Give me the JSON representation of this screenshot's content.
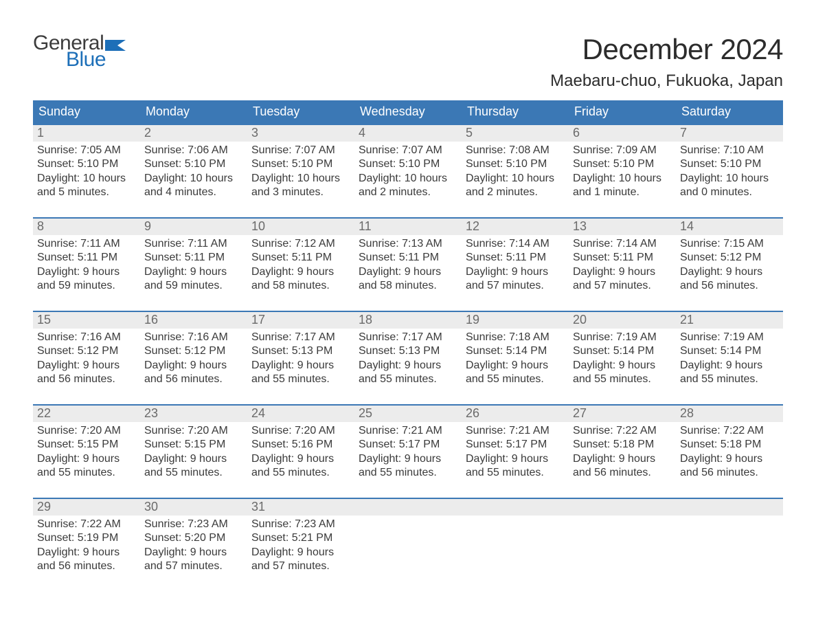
{
  "logo": {
    "line1": "General",
    "line2": "Blue",
    "flag_color": "#1d6fb8",
    "text_gray": "#3c3c3c"
  },
  "title": "December 2024",
  "location": "Maebaru-chuo, Fukuoka, Japan",
  "colors": {
    "header_bg": "#3b78b5",
    "header_text": "#ffffff",
    "week_border": "#3b78b5",
    "daynum_bg": "#ececec",
    "daynum_text": "#6a6a6a",
    "body_text": "#3a3a3a",
    "page_bg": "#ffffff"
  },
  "fonts": {
    "title_pt": 42,
    "location_pt": 24,
    "dow_pt": 18,
    "daynum_pt": 18,
    "body_pt": 16
  },
  "days_of_week": [
    "Sunday",
    "Monday",
    "Tuesday",
    "Wednesday",
    "Thursday",
    "Friday",
    "Saturday"
  ],
  "weeks": [
    [
      {
        "n": "1",
        "sunrise": "Sunrise: 7:05 AM",
        "sunset": "Sunset: 5:10 PM",
        "d1": "Daylight: 10 hours",
        "d2": "and 5 minutes."
      },
      {
        "n": "2",
        "sunrise": "Sunrise: 7:06 AM",
        "sunset": "Sunset: 5:10 PM",
        "d1": "Daylight: 10 hours",
        "d2": "and 4 minutes."
      },
      {
        "n": "3",
        "sunrise": "Sunrise: 7:07 AM",
        "sunset": "Sunset: 5:10 PM",
        "d1": "Daylight: 10 hours",
        "d2": "and 3 minutes."
      },
      {
        "n": "4",
        "sunrise": "Sunrise: 7:07 AM",
        "sunset": "Sunset: 5:10 PM",
        "d1": "Daylight: 10 hours",
        "d2": "and 2 minutes."
      },
      {
        "n": "5",
        "sunrise": "Sunrise: 7:08 AM",
        "sunset": "Sunset: 5:10 PM",
        "d1": "Daylight: 10 hours",
        "d2": "and 2 minutes."
      },
      {
        "n": "6",
        "sunrise": "Sunrise: 7:09 AM",
        "sunset": "Sunset: 5:10 PM",
        "d1": "Daylight: 10 hours",
        "d2": "and 1 minute."
      },
      {
        "n": "7",
        "sunrise": "Sunrise: 7:10 AM",
        "sunset": "Sunset: 5:10 PM",
        "d1": "Daylight: 10 hours",
        "d2": "and 0 minutes."
      }
    ],
    [
      {
        "n": "8",
        "sunrise": "Sunrise: 7:11 AM",
        "sunset": "Sunset: 5:11 PM",
        "d1": "Daylight: 9 hours",
        "d2": "and 59 minutes."
      },
      {
        "n": "9",
        "sunrise": "Sunrise: 7:11 AM",
        "sunset": "Sunset: 5:11 PM",
        "d1": "Daylight: 9 hours",
        "d2": "and 59 minutes."
      },
      {
        "n": "10",
        "sunrise": "Sunrise: 7:12 AM",
        "sunset": "Sunset: 5:11 PM",
        "d1": "Daylight: 9 hours",
        "d2": "and 58 minutes."
      },
      {
        "n": "11",
        "sunrise": "Sunrise: 7:13 AM",
        "sunset": "Sunset: 5:11 PM",
        "d1": "Daylight: 9 hours",
        "d2": "and 58 minutes."
      },
      {
        "n": "12",
        "sunrise": "Sunrise: 7:14 AM",
        "sunset": "Sunset: 5:11 PM",
        "d1": "Daylight: 9 hours",
        "d2": "and 57 minutes."
      },
      {
        "n": "13",
        "sunrise": "Sunrise: 7:14 AM",
        "sunset": "Sunset: 5:11 PM",
        "d1": "Daylight: 9 hours",
        "d2": "and 57 minutes."
      },
      {
        "n": "14",
        "sunrise": "Sunrise: 7:15 AM",
        "sunset": "Sunset: 5:12 PM",
        "d1": "Daylight: 9 hours",
        "d2": "and 56 minutes."
      }
    ],
    [
      {
        "n": "15",
        "sunrise": "Sunrise: 7:16 AM",
        "sunset": "Sunset: 5:12 PM",
        "d1": "Daylight: 9 hours",
        "d2": "and 56 minutes."
      },
      {
        "n": "16",
        "sunrise": "Sunrise: 7:16 AM",
        "sunset": "Sunset: 5:12 PM",
        "d1": "Daylight: 9 hours",
        "d2": "and 56 minutes."
      },
      {
        "n": "17",
        "sunrise": "Sunrise: 7:17 AM",
        "sunset": "Sunset: 5:13 PM",
        "d1": "Daylight: 9 hours",
        "d2": "and 55 minutes."
      },
      {
        "n": "18",
        "sunrise": "Sunrise: 7:17 AM",
        "sunset": "Sunset: 5:13 PM",
        "d1": "Daylight: 9 hours",
        "d2": "and 55 minutes."
      },
      {
        "n": "19",
        "sunrise": "Sunrise: 7:18 AM",
        "sunset": "Sunset: 5:14 PM",
        "d1": "Daylight: 9 hours",
        "d2": "and 55 minutes."
      },
      {
        "n": "20",
        "sunrise": "Sunrise: 7:19 AM",
        "sunset": "Sunset: 5:14 PM",
        "d1": "Daylight: 9 hours",
        "d2": "and 55 minutes."
      },
      {
        "n": "21",
        "sunrise": "Sunrise: 7:19 AM",
        "sunset": "Sunset: 5:14 PM",
        "d1": "Daylight: 9 hours",
        "d2": "and 55 minutes."
      }
    ],
    [
      {
        "n": "22",
        "sunrise": "Sunrise: 7:20 AM",
        "sunset": "Sunset: 5:15 PM",
        "d1": "Daylight: 9 hours",
        "d2": "and 55 minutes."
      },
      {
        "n": "23",
        "sunrise": "Sunrise: 7:20 AM",
        "sunset": "Sunset: 5:15 PM",
        "d1": "Daylight: 9 hours",
        "d2": "and 55 minutes."
      },
      {
        "n": "24",
        "sunrise": "Sunrise: 7:20 AM",
        "sunset": "Sunset: 5:16 PM",
        "d1": "Daylight: 9 hours",
        "d2": "and 55 minutes."
      },
      {
        "n": "25",
        "sunrise": "Sunrise: 7:21 AM",
        "sunset": "Sunset: 5:17 PM",
        "d1": "Daylight: 9 hours",
        "d2": "and 55 minutes."
      },
      {
        "n": "26",
        "sunrise": "Sunrise: 7:21 AM",
        "sunset": "Sunset: 5:17 PM",
        "d1": "Daylight: 9 hours",
        "d2": "and 55 minutes."
      },
      {
        "n": "27",
        "sunrise": "Sunrise: 7:22 AM",
        "sunset": "Sunset: 5:18 PM",
        "d1": "Daylight: 9 hours",
        "d2": "and 56 minutes."
      },
      {
        "n": "28",
        "sunrise": "Sunrise: 7:22 AM",
        "sunset": "Sunset: 5:18 PM",
        "d1": "Daylight: 9 hours",
        "d2": "and 56 minutes."
      }
    ],
    [
      {
        "n": "29",
        "sunrise": "Sunrise: 7:22 AM",
        "sunset": "Sunset: 5:19 PM",
        "d1": "Daylight: 9 hours",
        "d2": "and 56 minutes."
      },
      {
        "n": "30",
        "sunrise": "Sunrise: 7:23 AM",
        "sunset": "Sunset: 5:20 PM",
        "d1": "Daylight: 9 hours",
        "d2": "and 57 minutes."
      },
      {
        "n": "31",
        "sunrise": "Sunrise: 7:23 AM",
        "sunset": "Sunset: 5:21 PM",
        "d1": "Daylight: 9 hours",
        "d2": "and 57 minutes."
      },
      {
        "empty": true
      },
      {
        "empty": true
      },
      {
        "empty": true
      },
      {
        "empty": true
      }
    ]
  ]
}
